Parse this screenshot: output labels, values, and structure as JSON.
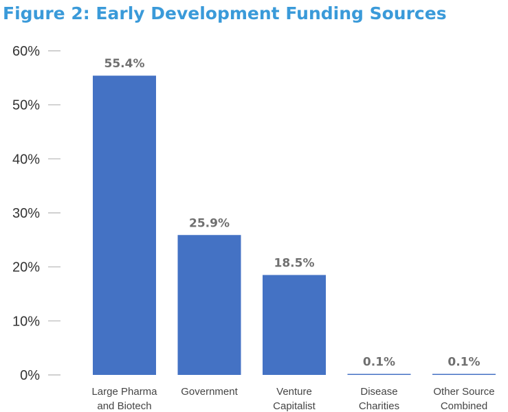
{
  "chart_data": {
    "type": "bar",
    "title": "Figure 2:  Early Development Funding Sources",
    "categories": [
      [
        "Large Pharma",
        "and Biotech"
      ],
      [
        "Government"
      ],
      [
        "Venture",
        "Capitalist"
      ],
      [
        "Disease",
        "Charities"
      ],
      [
        "Other Source",
        "Combined"
      ]
    ],
    "values": [
      55.4,
      25.9,
      18.5,
      0.1,
      0.1
    ],
    "data_labels": [
      "55.4%",
      "25.9%",
      "18.5%",
      "0.1%",
      "0.1%"
    ],
    "yticks": [
      0,
      10,
      20,
      30,
      40,
      50,
      60
    ],
    "ytick_labels": [
      "0%",
      "10%",
      "20%",
      "30%",
      "40%",
      "50%",
      "60%"
    ],
    "ylim": [
      0,
      60
    ],
    "grid": false,
    "colors": {
      "bar": "#4472c4",
      "title": "#3a9ad9"
    }
  }
}
